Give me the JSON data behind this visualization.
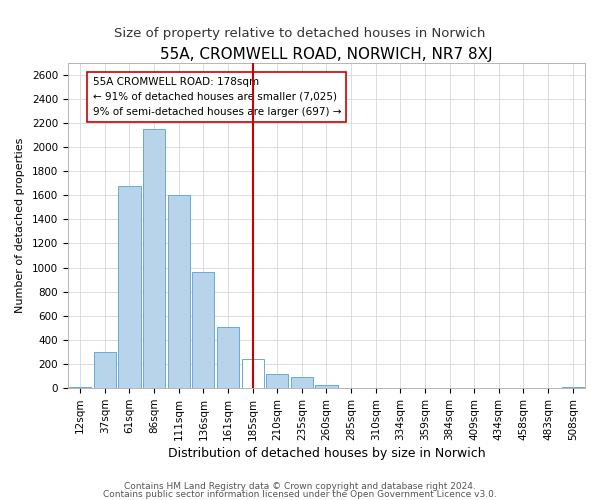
{
  "title": "55A, CROMWELL ROAD, NORWICH, NR7 8XJ",
  "subtitle": "Size of property relative to detached houses in Norwich",
  "xlabel": "Distribution of detached houses by size in Norwich",
  "ylabel": "Number of detached properties",
  "categories": [
    "12sqm",
    "37sqm",
    "61sqm",
    "86sqm",
    "111sqm",
    "136sqm",
    "161sqm",
    "185sqm",
    "210sqm",
    "235sqm",
    "260sqm",
    "285sqm",
    "310sqm",
    "334sqm",
    "359sqm",
    "384sqm",
    "409sqm",
    "434sqm",
    "458sqm",
    "483sqm",
    "508sqm"
  ],
  "values": [
    10,
    300,
    1680,
    2150,
    1600,
    960,
    510,
    240,
    120,
    90,
    30,
    5,
    5,
    5,
    5,
    3,
    2,
    2,
    2,
    2,
    10
  ],
  "bar_color_normal": "#b8d4ea",
  "bar_color_highlight": "#ffffff",
  "bar_edge_color": "#6aaad4",
  "highlight_index": 7,
  "vline_x_index": 7,
  "vline_color": "#cc0000",
  "annotation_line1": "55A CROMWELL ROAD: 178sqm",
  "annotation_line2": "← 91% of detached houses are smaller (7,025)",
  "annotation_line3": "9% of semi-detached houses are larger (697) →",
  "annotation_box_color": "#ffffff",
  "annotation_border_color": "#cc0000",
  "ylim": [
    0,
    2700
  ],
  "yticks": [
    0,
    200,
    400,
    600,
    800,
    1000,
    1200,
    1400,
    1600,
    1800,
    2000,
    2200,
    2400,
    2600
  ],
  "footer1": "Contains HM Land Registry data © Crown copyright and database right 2024.",
  "footer2": "Contains public sector information licensed under the Open Government Licence v3.0.",
  "title_fontsize": 11,
  "subtitle_fontsize": 9.5,
  "xlabel_fontsize": 9,
  "ylabel_fontsize": 8,
  "tick_fontsize": 7.5,
  "footer_fontsize": 6.5,
  "annotation_fontsize": 7.5,
  "background_color": "#ffffff",
  "plot_bg_color": "#ffffff",
  "grid_color": "#d0d8e0"
}
